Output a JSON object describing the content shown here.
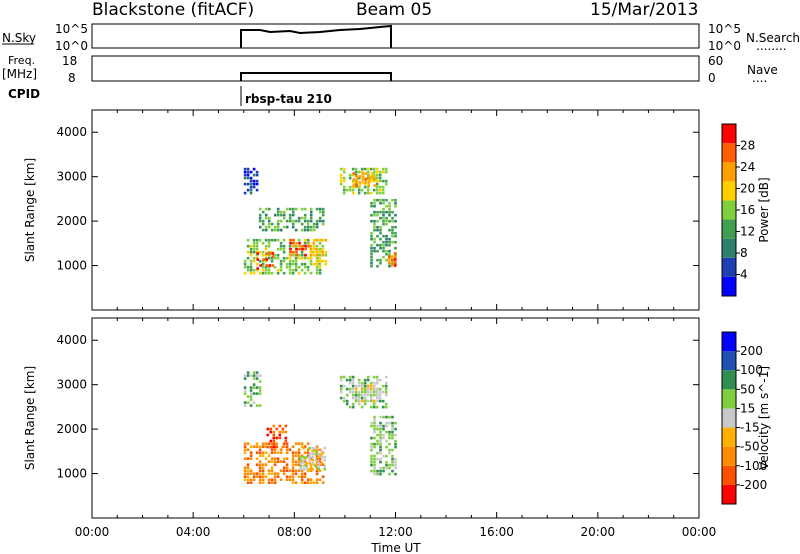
{
  "header": {
    "station": "Blackstone (fitACF)",
    "beam": "Beam 05",
    "date": "15/Mar/2013"
  },
  "nsky_panel": {
    "left_label": "N.Sky",
    "left_ticks": [
      "10^5",
      "10^0"
    ],
    "right_ticks": [
      "10^5",
      "10^0"
    ],
    "right_label": "N.Search",
    "dots": "........"
  },
  "freq_panel": {
    "left_label_line1": "Freq.",
    "left_label_line2": "[MHz]",
    "left_ticks": [
      "18",
      "8"
    ],
    "right_ticks": [
      "60",
      "0"
    ],
    "right_label": "Nave",
    "dots": "...."
  },
  "cpid": {
    "label": "CPID",
    "value": "rbsp-tau 210"
  },
  "x_axis": {
    "label": "Time UT",
    "ticks": [
      "00:00",
      "04:00",
      "08:00",
      "12:00",
      "16:00",
      "20:00",
      "00:00"
    ]
  },
  "colors": {
    "power": [
      "#0000ff",
      "#1e3fb4",
      "#2f7f6e",
      "#3f9f4f",
      "#7fcf3f",
      "#ffcf00",
      "#ff9f00",
      "#ff5f00",
      "#ff0000"
    ],
    "velocity": [
      "#ff0000",
      "#ff5000",
      "#ff8a00",
      "#ffb000",
      "#c8c8c8",
      "#7fcf3f",
      "#2f8f4f",
      "#1e50b4",
      "#0000ff"
    ]
  },
  "chart_data": [
    {
      "type": "heatmap",
      "name": "power",
      "ylabel": "Slant Range [km]",
      "xlabel": "",
      "xlim": [
        0,
        24
      ],
      "ylim": [
        0,
        4500
      ],
      "yticks": [
        1000,
        2000,
        3000,
        4000
      ],
      "colorbar_label": "Power [dB]",
      "colorbar_ticks": [
        "4",
        "8",
        "12",
        "16",
        "20",
        "24",
        "28"
      ],
      "regions": [
        {
          "x": [
            6.0,
            6.5
          ],
          "y": [
            2600,
            3200
          ],
          "level": 1
        },
        {
          "x": [
            6.0,
            9.0
          ],
          "y": [
            800,
            1600
          ],
          "level": 4
        },
        {
          "x": [
            6.5,
            7.2
          ],
          "y": [
            900,
            1300
          ],
          "level": 8
        },
        {
          "x": [
            7.8,
            8.6
          ],
          "y": [
            1200,
            1600
          ],
          "level": 7
        },
        {
          "x": [
            8.6,
            9.2
          ],
          "y": [
            1000,
            1600
          ],
          "level": 5
        },
        {
          "x": [
            6.6,
            9.2
          ],
          "y": [
            1800,
            2300
          ],
          "level": 3
        },
        {
          "x": [
            9.8,
            11.6
          ],
          "y": [
            2600,
            3200
          ],
          "level": 4
        },
        {
          "x": [
            10.3,
            11.2
          ],
          "y": [
            2800,
            3100
          ],
          "level": 6
        },
        {
          "x": [
            11.0,
            12.0
          ],
          "y": [
            1000,
            2500
          ],
          "level": 3
        },
        {
          "x": [
            11.7,
            12.0
          ],
          "y": [
            1000,
            1300
          ],
          "level": 7
        }
      ]
    },
    {
      "type": "heatmap",
      "name": "velocity",
      "ylabel": "Slant Range [km]",
      "xlabel": "Time UT",
      "xlim": [
        0,
        24
      ],
      "ylim": [
        0,
        4500
      ],
      "yticks": [
        1000,
        2000,
        3000,
        4000
      ],
      "colorbar_label": "Velocity [m s^-1]",
      "colorbar_ticks": [
        "-200",
        "-100",
        "-50",
        "-15",
        "15",
        "50",
        "100",
        "200"
      ],
      "regions": [
        {
          "x": [
            6.0,
            9.2
          ],
          "y": [
            800,
            1700
          ],
          "level": 2
        },
        {
          "x": [
            6.9,
            7.7
          ],
          "y": [
            1600,
            2100
          ],
          "level": 1
        },
        {
          "x": [
            8.2,
            9.2
          ],
          "y": [
            1100,
            1600
          ],
          "level": 4
        },
        {
          "x": [
            6.0,
            6.6
          ],
          "y": [
            2500,
            3300
          ],
          "level": 5
        },
        {
          "x": [
            9.8,
            11.6
          ],
          "y": [
            2500,
            3200
          ],
          "level": 5
        },
        {
          "x": [
            10.4,
            11.3
          ],
          "y": [
            2600,
            3000
          ],
          "level": 4
        },
        {
          "x": [
            11.0,
            12.0
          ],
          "y": [
            1000,
            2300
          ],
          "level": 5
        }
      ]
    }
  ]
}
